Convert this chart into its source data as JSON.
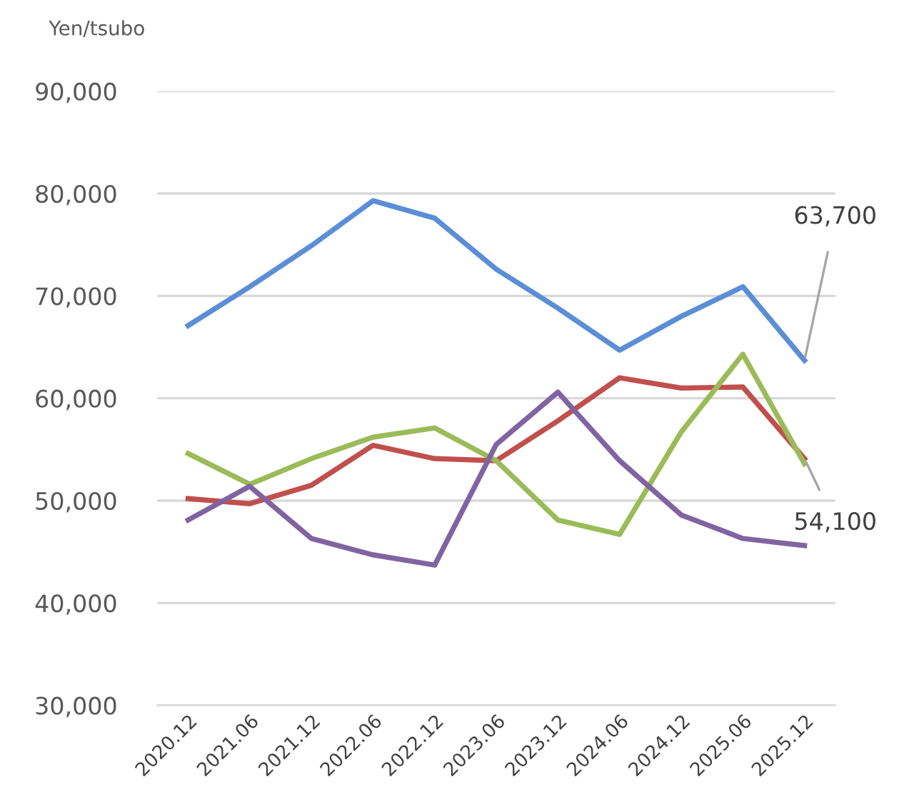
{
  "chart_data": {
    "type": "line",
    "ylabel": "Yen/tsubo",
    "categories": [
      "2020.12",
      "2021.06",
      "2021.12",
      "2022.06",
      "2022.12",
      "2023.06",
      "2023.12",
      "2024.06",
      "2024.12",
      "2025.06",
      "2025.12"
    ],
    "series": [
      {
        "color": "#5b8ed6",
        "values": [
          67100,
          70900,
          74900,
          79300,
          77600,
          72600,
          68800,
          64700,
          68000,
          70900,
          63700
        ]
      },
      {
        "color": "#c0504d",
        "values": [
          50200,
          49700,
          51500,
          55400,
          54100,
          53900,
          57800,
          62000,
          61000,
          61100,
          54100
        ]
      },
      {
        "color": "#9bbb59",
        "values": [
          54600,
          51600,
          54100,
          56200,
          57100,
          53900,
          48100,
          46700,
          56700,
          64300,
          53600
        ]
      },
      {
        "color": "#8064a2",
        "values": [
          48100,
          51400,
          46300,
          44700,
          43700,
          55500,
          60600,
          53900,
          48600,
          46300,
          45600
        ]
      }
    ],
    "annotations": [
      {
        "text": "63,700",
        "x": "2025.12",
        "y": 63700
      },
      {
        "text": "54,100",
        "x": "2025.12",
        "y": 54100
      }
    ],
    "ylim": [
      30000,
      90000
    ],
    "yticks": [
      {
        "value": 30000,
        "label": "30,000"
      },
      {
        "value": 40000,
        "label": "40,000"
      },
      {
        "value": 50000,
        "label": "50,000"
      },
      {
        "value": 60000,
        "label": "60,000"
      },
      {
        "value": 70000,
        "label": "70,000"
      },
      {
        "value": 80000,
        "label": "80,000"
      },
      {
        "value": 90000,
        "label": "90,000"
      }
    ],
    "grid": "y",
    "legend": false,
    "marker": "none",
    "line_style": "solid"
  }
}
